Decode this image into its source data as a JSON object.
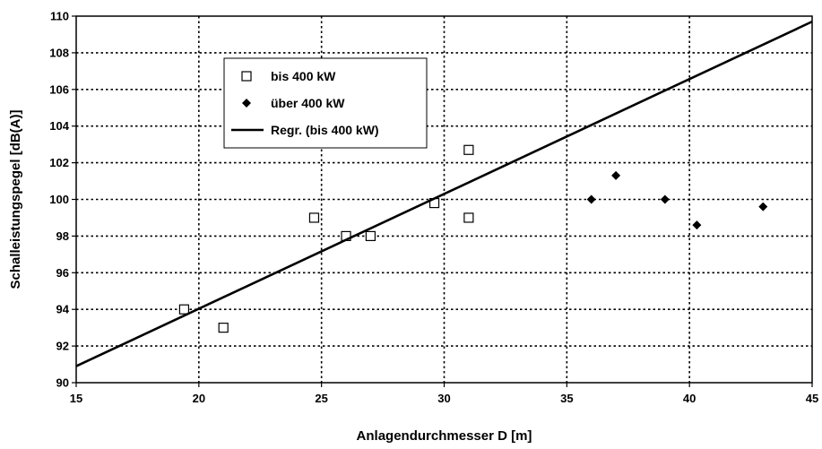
{
  "chart_data": {
    "type": "scatter",
    "title": "",
    "xlabel": "Anlagendurchmesser D [m]",
    "ylabel": "Schalleistungspegel [dB(A)]",
    "xlim": [
      15,
      45
    ],
    "ylim": [
      90,
      110
    ],
    "xticks": [
      15,
      20,
      25,
      30,
      35,
      40,
      45
    ],
    "yticks": [
      90,
      92,
      94,
      96,
      98,
      100,
      102,
      104,
      106,
      108,
      110
    ],
    "xtick_labels": [
      "15",
      "20",
      "25",
      "30",
      "35",
      "40",
      "45"
    ],
    "ytick_labels": [
      "90",
      "92",
      "94",
      "96",
      "98",
      "100",
      "102",
      "104",
      "106",
      "108",
      "110"
    ],
    "grid": true,
    "legend_position": "upper-left",
    "series": [
      {
        "name": "bis 400 kW",
        "marker": "open-square",
        "color": "#000000",
        "points": [
          {
            "x": 19.4,
            "y": 94.0
          },
          {
            "x": 21.0,
            "y": 93.0
          },
          {
            "x": 24.7,
            "y": 99.0
          },
          {
            "x": 26.0,
            "y": 98.0
          },
          {
            "x": 27.0,
            "y": 98.0
          },
          {
            "x": 29.6,
            "y": 99.8
          },
          {
            "x": 31.0,
            "y": 102.7
          },
          {
            "x": 31.0,
            "y": 99.0
          }
        ]
      },
      {
        "name": "über 400 kW",
        "marker": "filled-diamond",
        "color": "#000000",
        "points": [
          {
            "x": 36.0,
            "y": 100.0
          },
          {
            "x": 37.0,
            "y": 101.3
          },
          {
            "x": 39.0,
            "y": 100.0
          },
          {
            "x": 40.3,
            "y": 98.6
          },
          {
            "x": 43.0,
            "y": 99.6
          }
        ]
      },
      {
        "name": "Regr. (bis 400 kW)",
        "marker": "line",
        "color": "#000000",
        "points": [
          {
            "x": 15.0,
            "y": 90.9
          },
          {
            "x": 45.0,
            "y": 109.7
          }
        ]
      }
    ]
  }
}
